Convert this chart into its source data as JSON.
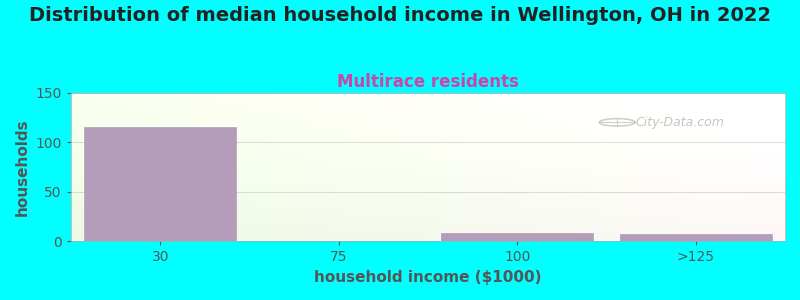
{
  "title": "Distribution of median household income in Wellington, OH in 2022",
  "subtitle": "Multirace residents",
  "xlabel": "household income ($1000)",
  "ylabel": "households",
  "background_color": "#00FFFF",
  "bar_color": "#b39dbb",
  "categories": [
    "30",
    "75",
    "100",
    ">125"
  ],
  "values": [
    115,
    0,
    8,
    7
  ],
  "ylim": [
    0,
    150
  ],
  "yticks": [
    0,
    50,
    100,
    150
  ],
  "title_fontsize": 14,
  "subtitle_fontsize": 12,
  "subtitle_color": "#cc44aa",
  "axis_label_color": "#555555",
  "tick_color": "#555555",
  "watermark_text": "City-Data.com",
  "watermark_color": "#bbbbbb"
}
